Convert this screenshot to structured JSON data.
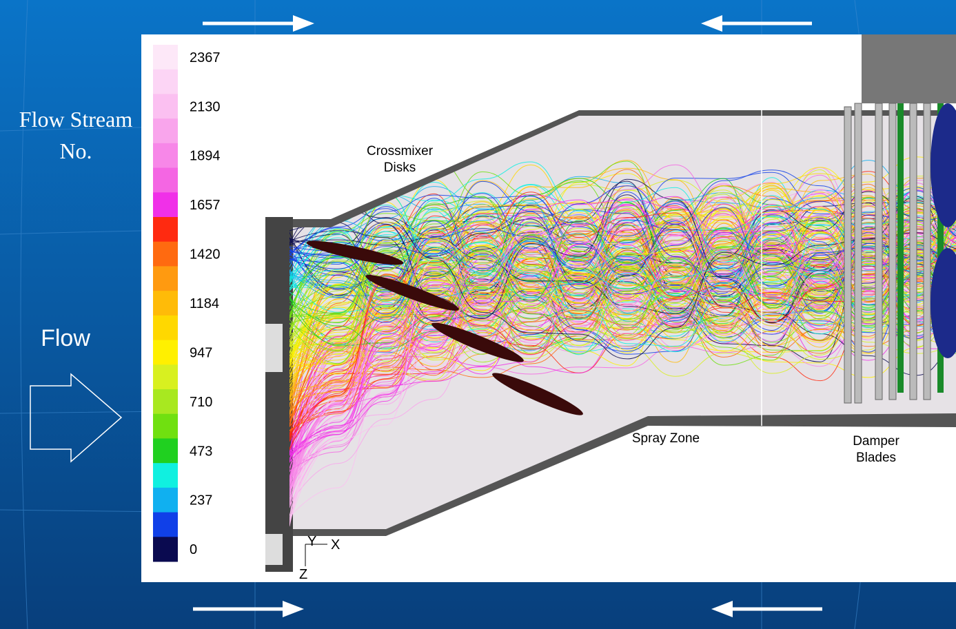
{
  "sidebar": {
    "stream_label": [
      "Flow Stream",
      "No."
    ],
    "flow_label": "Flow"
  },
  "colorbar": {
    "ticks": [
      "2367",
      "2130",
      "1894",
      "1657",
      "1420",
      "1184",
      "947",
      "710",
      "473",
      "237",
      "0"
    ],
    "colors": [
      "#fde8f8",
      "#fcd5f5",
      "#fbc0f1",
      "#f9a5ec",
      "#f787e8",
      "#f466e3",
      "#f030e8",
      "#ff2a10",
      "#ff6a10",
      "#ff9a10",
      "#ffbb08",
      "#ffd800",
      "#fff000",
      "#d8f020",
      "#a8e820",
      "#70e010",
      "#20d020",
      "#10f0e0",
      "#10b0f0",
      "#1040e8",
      "#0a0a50"
    ]
  },
  "annotations": {
    "crossmixer": [
      "Crossmixer",
      "Disks"
    ],
    "spray_zone": "Spray Zone",
    "damper": [
      "Damper",
      "Blades"
    ]
  },
  "axes": {
    "y": "Y",
    "x": "X",
    "z": "Z"
  }
}
